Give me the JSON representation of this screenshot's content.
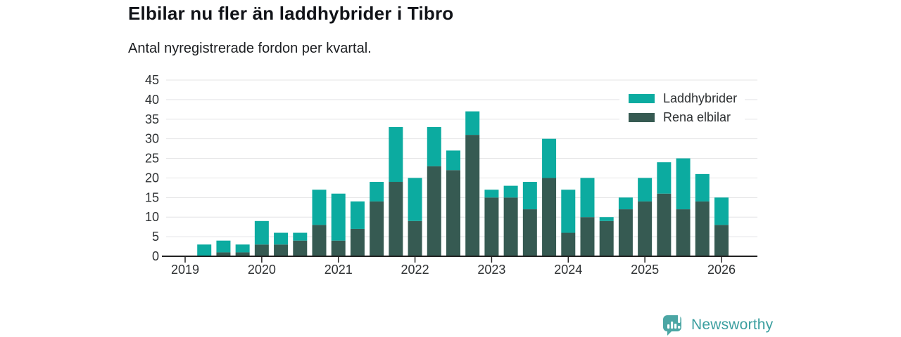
{
  "title": "Elbilar nu fler än laddhybrider i Tibro",
  "subtitle": "Antal nyregistrerade fordon per kvartal.",
  "footer": {
    "brand": "Newsworthy"
  },
  "colors": {
    "laddhybrider": "#0caba0",
    "rena_elbilar": "#365a52",
    "axis": "#222222",
    "gridline": "#e4e4e6",
    "brand_teal": "#4ba6a4"
  },
  "chart_data": {
    "type": "bar",
    "stacked": true,
    "title": "Elbilar nu fler än laddhybrider i Tibro",
    "subtitle": "Antal nyregistrerade fordon per kvartal.",
    "xlabel": "",
    "ylabel": "",
    "ylim": [
      0,
      45
    ],
    "ytick_step": 5,
    "grid": true,
    "legend_position": "top-right",
    "quarters": [
      "2019 Q1",
      "2019 Q2",
      "2019 Q3",
      "2019 Q4",
      "2020 Q1",
      "2020 Q2",
      "2020 Q3",
      "2020 Q4",
      "2021 Q1",
      "2021 Q2",
      "2021 Q3",
      "2021 Q4",
      "2022 Q1",
      "2022 Q2",
      "2022 Q3",
      "2022 Q4",
      "2023 Q1",
      "2023 Q2",
      "2023 Q3",
      "2023 Q4",
      "2024 Q1",
      "2024 Q2",
      "2024 Q3",
      "2024 Q4",
      "2025 Q1",
      "2025 Q2",
      "2025 Q3",
      "2025 Q4",
      "2026 Q1"
    ],
    "year_labels": [
      "2019",
      "2020",
      "2021",
      "2022",
      "2023",
      "2024",
      "2025",
      "2026"
    ],
    "series": [
      {
        "name": "Rena elbilar",
        "color": "#365a52",
        "values": [
          0,
          0,
          1,
          1,
          3,
          3,
          4,
          8,
          4,
          7,
          14,
          19,
          9,
          23,
          22,
          31,
          15,
          15,
          12,
          20,
          6,
          10,
          9,
          12,
          14,
          16,
          12,
          14,
          8
        ]
      },
      {
        "name": "Laddhybrider",
        "color": "#0caba0",
        "values": [
          0,
          3,
          3,
          2,
          6,
          3,
          2,
          9,
          12,
          7,
          5,
          14,
          11,
          10,
          5,
          6,
          2,
          3,
          7,
          10,
          11,
          10,
          1,
          3,
          6,
          8,
          13,
          7,
          7
        ]
      }
    ],
    "totals": [
      0,
      3,
      4,
      3,
      9,
      6,
      6,
      17,
      16,
      14,
      19,
      33,
      20,
      33,
      27,
      37,
      17,
      18,
      19,
      30,
      17,
      20,
      10,
      15,
      20,
      24,
      25,
      21,
      15
    ],
    "legend": [
      {
        "label": "Laddhybrider",
        "color": "#0caba0"
      },
      {
        "label": "Rena elbilar",
        "color": "#365a52"
      }
    ]
  }
}
